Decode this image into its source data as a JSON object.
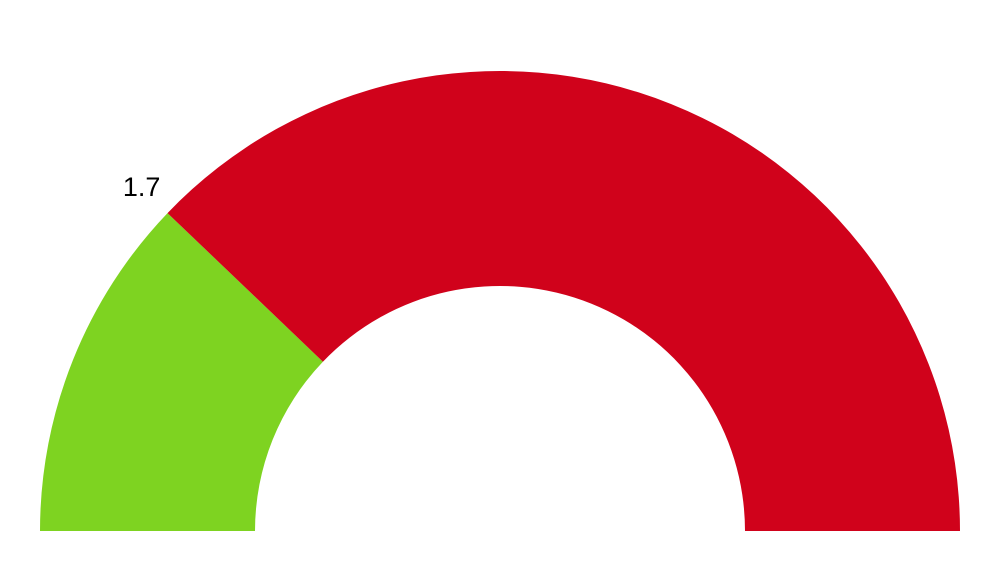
{
  "chart_data": {
    "type": "gauge",
    "title": "",
    "min": 0,
    "max": 7,
    "value": 1.7,
    "value_label": "1.7",
    "segments": [
      {
        "name": "filled",
        "from": 0,
        "to": 1.7,
        "color": "#7ED321"
      },
      {
        "name": "remaining",
        "from": 1.7,
        "to": 7,
        "color": "#D0021B"
      }
    ]
  }
}
